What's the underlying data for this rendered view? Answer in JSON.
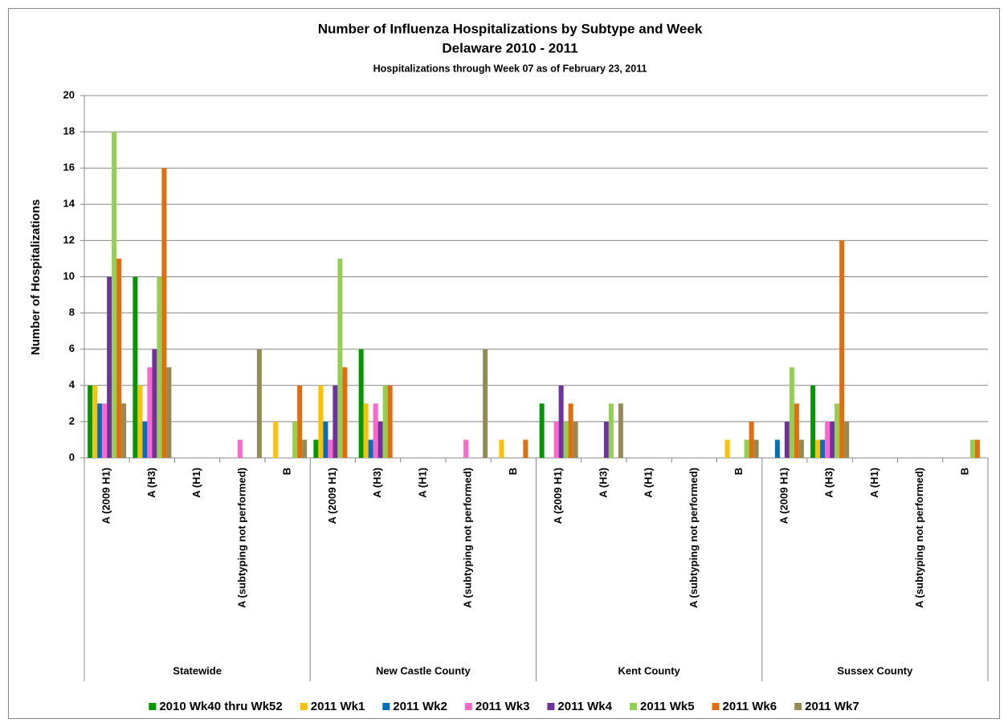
{
  "chart_data": {
    "type": "bar",
    "title": "Number of Influenza Hospitalizations by Subtype and Week",
    "subtitle": "Delaware 2010 - 2011",
    "note": "Hospitalizations through Week 07 as of February 23, 2011",
    "y_label": "Number of Hospitalizations",
    "groups": [
      "Statewide",
      "New Castle County",
      "Kent County",
      "Sussex County"
    ],
    "categories": [
      "A (2009 H1)",
      "A (H3)",
      "A (H1)",
      "A (subtyping  not performed)",
      "B",
      "A (2009 H1)",
      "A (H3)",
      "A (H1)",
      "A (subtyping  not performed)",
      "B",
      "A (2009 H1)",
      "A (H3)",
      "A (H1)",
      "A (subtyping  not performed)",
      "B",
      "A (2009 H1)",
      "A (H3)",
      "A (H1)",
      "A (subtyping  not performed)",
      "B"
    ],
    "series": [
      {
        "name": "2010 Wk40 thru Wk52",
        "color": "#009a00",
        "values": [
          4,
          10,
          0,
          0,
          0,
          1,
          6,
          0,
          0,
          0,
          3,
          0,
          0,
          0,
          0,
          0,
          4,
          0,
          0,
          0
        ]
      },
      {
        "name": "2011 Wk1",
        "color": "#ffc000",
        "values": [
          4,
          4,
          0,
          0,
          2,
          4,
          3,
          0,
          0,
          1,
          0,
          0,
          0,
          0,
          1,
          0,
          1,
          0,
          0,
          0
        ]
      },
      {
        "name": "2011 Wk2",
        "color": "#0070c0",
        "values": [
          3,
          2,
          0,
          0,
          0,
          2,
          1,
          0,
          0,
          0,
          0,
          0,
          0,
          0,
          0,
          1,
          1,
          0,
          0,
          0
        ]
      },
      {
        "name": "2011 Wk3",
        "color": "#ff66cc",
        "values": [
          3,
          5,
          0,
          1,
          0,
          1,
          3,
          0,
          1,
          0,
          2,
          0,
          0,
          0,
          0,
          0,
          2,
          0,
          0,
          0
        ]
      },
      {
        "name": "2011 Wk4",
        "color": "#7030a0",
        "values": [
          10,
          6,
          0,
          0,
          0,
          4,
          2,
          0,
          0,
          0,
          4,
          2,
          0,
          0,
          0,
          2,
          2,
          0,
          0,
          0
        ]
      },
      {
        "name": "2011 Wk5",
        "color": "#92d050",
        "values": [
          18,
          10,
          0,
          0,
          2,
          11,
          4,
          0,
          0,
          0,
          2,
          3,
          0,
          0,
          1,
          5,
          3,
          0,
          0,
          1
        ]
      },
      {
        "name": "2011 Wk6",
        "color": "#e46c0a",
        "values": [
          11,
          16,
          0,
          0,
          4,
          5,
          4,
          0,
          0,
          1,
          3,
          0,
          0,
          0,
          2,
          3,
          12,
          0,
          0,
          1
        ]
      },
      {
        "name": "2011 Wk7",
        "color": "#948a54",
        "values": [
          3,
          5,
          0,
          6,
          1,
          0,
          0,
          0,
          6,
          0,
          2,
          3,
          0,
          0,
          1,
          1,
          2,
          0,
          0,
          0
        ]
      }
    ],
    "ylim": [
      0,
      20
    ],
    "yticks": [
      0,
      2,
      4,
      6,
      8,
      10,
      12,
      14,
      16,
      18,
      20
    ],
    "grid": true,
    "legend": "bottom"
  }
}
